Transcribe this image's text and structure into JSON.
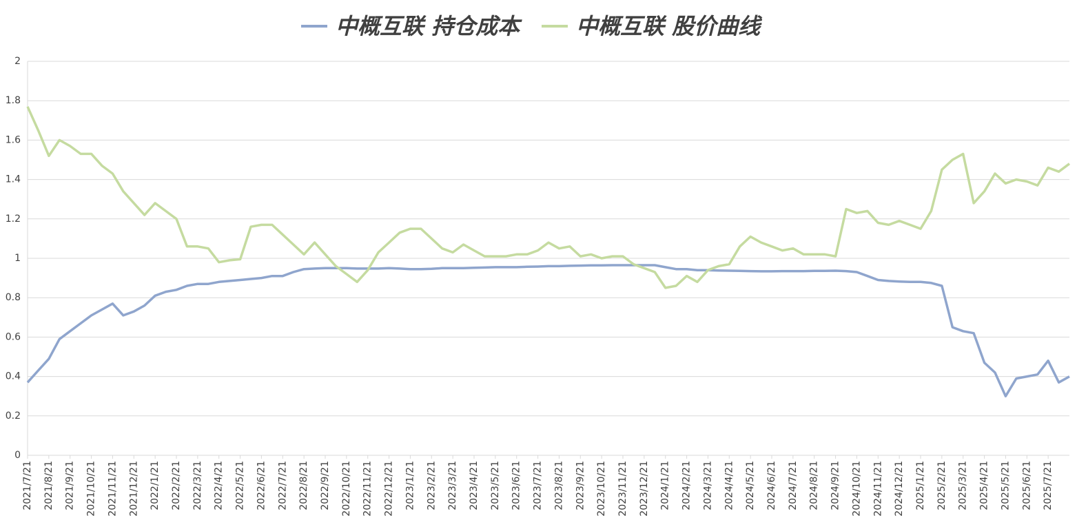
{
  "chart_data": {
    "type": "line",
    "categories": [
      "2021/7/21",
      null,
      "2021/8/21",
      null,
      "2021/9/21",
      null,
      "2021/10/21",
      null,
      "2021/11/21",
      null,
      "2021/12/21",
      null,
      "2022/1/21",
      null,
      "2022/2/21",
      null,
      "2022/3/21",
      null,
      "2022/4/21",
      null,
      "2022/5/21",
      null,
      "2022/6/21",
      null,
      "2022/7/21",
      null,
      "2022/8/21",
      null,
      "2022/9/21",
      null,
      "2022/10/21",
      null,
      "2022/11/21",
      null,
      "2022/12/21",
      null,
      "2023/1/21",
      null,
      "2023/2/21",
      null,
      "2023/3/21",
      null,
      "2023/4/21",
      null,
      "2023/5/21",
      null,
      "2023/6/21",
      null,
      "2023/7/21",
      null,
      "2023/8/21",
      null,
      "2023/9/21",
      null,
      "2023/10/21",
      null,
      "2023/11/21",
      null,
      "2023/12/21",
      null,
      "2024/1/21",
      null,
      "2024/2/21",
      null,
      "2024/3/21",
      null,
      "2024/4/21",
      null,
      "2024/5/21",
      null,
      "2024/6/21",
      null,
      "2024/7/21",
      null,
      "2024/8/21",
      null,
      "2024/9/21",
      null,
      "2024/10/21",
      null,
      "2024/11/21",
      null,
      "2024/12/21",
      null,
      "2025/1/21",
      null,
      "2025/2/21",
      null,
      "2025/3/21",
      null,
      "2025/4/21",
      null,
      "2025/5/21",
      null,
      "2025/6/21",
      null,
      "2025/7/21",
      null,
      null
    ],
    "series": [
      {
        "name": "中概互联 持仓成本",
        "color": "#8fa5cd",
        "values": [
          0.37,
          0.43,
          0.49,
          0.59,
          0.63,
          0.67,
          0.71,
          0.74,
          0.77,
          0.71,
          0.73,
          0.76,
          0.81,
          0.83,
          0.84,
          0.86,
          0.87,
          0.87,
          0.88,
          0.885,
          0.89,
          0.895,
          0.9,
          0.91,
          0.91,
          0.93,
          0.945,
          0.948,
          0.95,
          0.95,
          0.95,
          0.948,
          0.948,
          0.948,
          0.95,
          0.948,
          0.945,
          0.945,
          0.947,
          0.95,
          0.95,
          0.95,
          0.952,
          0.953,
          0.955,
          0.955,
          0.955,
          0.957,
          0.958,
          0.96,
          0.96,
          0.962,
          0.963,
          0.964,
          0.964,
          0.965,
          0.965,
          0.965,
          0.965,
          0.965,
          0.955,
          0.945,
          0.945,
          0.94,
          0.94,
          0.938,
          0.937,
          0.936,
          0.935,
          0.934,
          0.934,
          0.935,
          0.935,
          0.935,
          0.936,
          0.936,
          0.937,
          0.935,
          0.93,
          0.91,
          0.89,
          0.885,
          0.882,
          0.88,
          0.88,
          0.875,
          0.86,
          0.65,
          0.63,
          0.62,
          0.47,
          0.42,
          0.3,
          0.39,
          0.4,
          0.41,
          0.48,
          0.37,
          0.4
        ]
      },
      {
        "name": "中概互联 股价曲线",
        "color": "#c5dba0",
        "values": [
          1.77,
          1.65,
          1.52,
          1.6,
          1.57,
          1.53,
          1.53,
          1.47,
          1.43,
          1.34,
          1.28,
          1.22,
          1.28,
          1.24,
          1.2,
          1.06,
          1.06,
          1.05,
          0.98,
          0.99,
          0.995,
          1.16,
          1.17,
          1.17,
          1.12,
          1.07,
          1.02,
          1.08,
          1.02,
          0.96,
          0.92,
          0.88,
          0.94,
          1.03,
          1.08,
          1.13,
          1.15,
          1.15,
          1.1,
          1.05,
          1.03,
          1.07,
          1.04,
          1.01,
          1.01,
          1.01,
          1.02,
          1.02,
          1.04,
          1.08,
          1.05,
          1.06,
          1.01,
          1.02,
          1.0,
          1.01,
          1.01,
          0.97,
          0.95,
          0.93,
          0.85,
          0.86,
          0.91,
          0.88,
          0.94,
          0.96,
          0.97,
          1.06,
          1.11,
          1.08,
          1.06,
          1.04,
          1.05,
          1.02,
          1.02,
          1.02,
          1.01,
          1.25,
          1.23,
          1.24,
          1.18,
          1.17,
          1.19,
          1.17,
          1.15,
          1.24,
          1.45,
          1.5,
          1.53,
          1.28,
          1.34,
          1.43,
          1.38,
          1.4,
          1.39,
          1.37,
          1.46,
          1.44,
          1.48
        ]
      }
    ],
    "ylim": [
      0,
      2
    ],
    "yticks": [
      0,
      0.2,
      0.4,
      0.6,
      0.8,
      1,
      1.2,
      1.4,
      1.6,
      1.8,
      2
    ],
    "grid": true,
    "legend": "top"
  }
}
